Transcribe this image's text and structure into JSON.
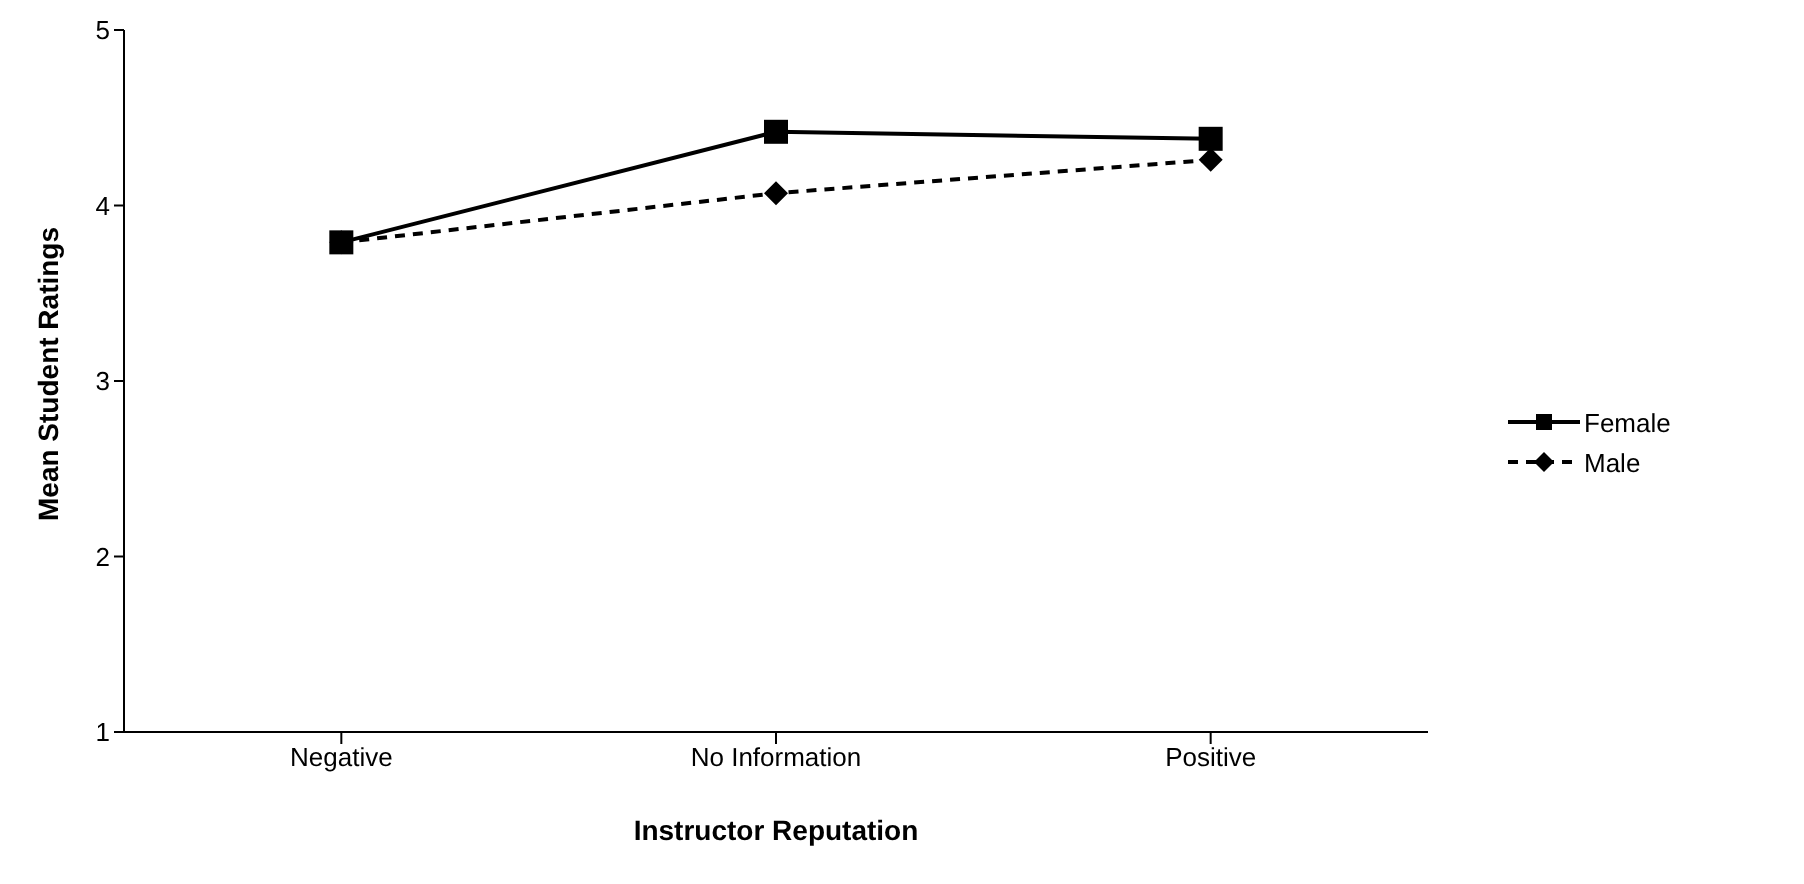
{
  "chart_data": {
    "type": "line",
    "xlabel": "Instructor Reputation",
    "ylabel": "Mean Student Ratings",
    "categories": [
      "Negative",
      "No Information",
      "Positive"
    ],
    "series": [
      {
        "name": "Female",
        "color": "#000000",
        "marker": "square",
        "line_style": "solid",
        "values": [
          3.79,
          4.42,
          4.38
        ]
      },
      {
        "name": "Male",
        "color": "#000000",
        "marker": "diamond",
        "line_style": "dashed",
        "values": [
          3.79,
          4.07,
          4.26
        ]
      }
    ],
    "ylim": [
      1,
      5
    ],
    "yticks": [
      1,
      2,
      3,
      4,
      5
    ],
    "grid": false,
    "legend": "right"
  }
}
